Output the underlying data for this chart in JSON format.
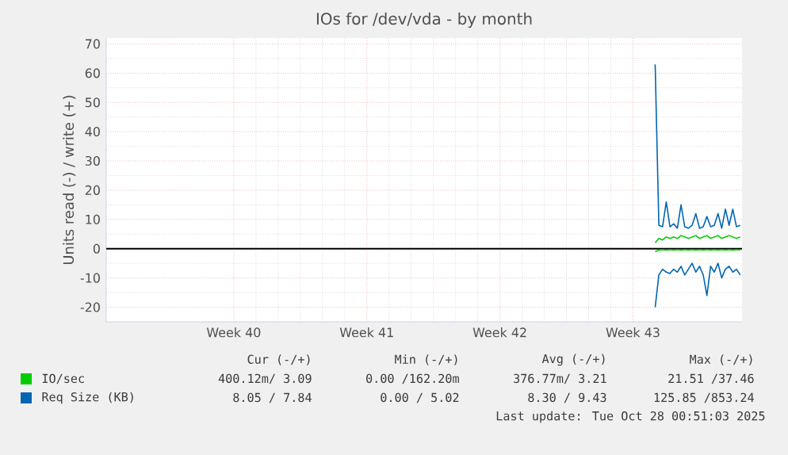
{
  "chart_data": {
    "type": "line",
    "title": "IOs for /dev/vda - by month",
    "ylabel": "Units read (-) / write (+)",
    "categories": [
      null,
      null,
      null,
      null,
      null,
      null,
      null,
      null,
      null,
      null,
      null,
      null,
      null,
      null,
      null,
      null,
      null,
      null,
      null,
      null,
      null,
      null,
      null,
      null,
      null,
      null,
      null,
      null,
      null,
      null,
      null,
      null,
      null,
      null,
      "Week 40",
      null,
      null,
      null,
      null,
      null,
      null,
      null,
      null,
      null,
      null,
      null,
      null,
      null,
      null,
      null,
      null,
      null,
      null,
      null,
      null,
      null,
      null,
      null,
      null,
      null,
      null,
      null,
      null,
      null,
      null,
      null,
      null,
      null,
      null,
      null,
      "Week 41",
      null,
      null,
      null,
      null,
      null,
      null,
      null,
      null,
      null,
      null,
      null,
      null,
      null,
      null,
      null,
      null,
      null,
      null,
      null,
      null,
      null,
      null,
      null,
      null,
      null,
      null,
      null,
      null,
      null,
      null,
      null,
      null,
      null,
      null,
      null,
      "Week 42",
      null,
      null,
      null,
      null,
      null,
      null,
      null,
      null,
      null,
      null,
      null,
      null,
      null,
      null,
      null,
      null,
      null,
      null,
      null,
      null,
      null,
      null,
      null,
      null,
      null,
      null,
      null,
      null,
      null,
      null,
      null,
      null,
      null,
      null,
      null,
      "Week 43",
      null,
      null,
      null,
      null,
      null,
      null,
      null,
      null,
      null,
      null,
      null,
      null,
      null,
      null,
      null,
      null,
      null,
      null,
      null,
      null,
      null,
      null,
      null,
      null,
      null,
      null,
      null,
      null,
      null
    ],
    "ylim": [
      -25,
      72
    ],
    "yticks": [
      -20,
      -10,
      0,
      10,
      20,
      30,
      40,
      50,
      60,
      70
    ],
    "grid": true,
    "legend": "bottom",
    "series": [
      {
        "name": "IO/sec",
        "color": "#00cc00",
        "values": [
          null,
          null,
          null,
          null,
          null,
          null,
          null,
          null,
          null,
          null,
          null,
          null,
          null,
          null,
          null,
          null,
          null,
          null,
          null,
          null,
          null,
          null,
          null,
          null,
          null,
          null,
          null,
          null,
          null,
          null,
          null,
          null,
          null,
          null,
          null,
          null,
          null,
          null,
          null,
          null,
          null,
          null,
          null,
          null,
          null,
          null,
          null,
          null,
          null,
          null,
          null,
          null,
          null,
          null,
          null,
          null,
          null,
          null,
          null,
          null,
          null,
          null,
          null,
          null,
          null,
          null,
          null,
          null,
          null,
          null,
          null,
          null,
          null,
          null,
          null,
          null,
          null,
          null,
          null,
          null,
          null,
          null,
          null,
          null,
          null,
          null,
          null,
          null,
          null,
          null,
          null,
          null,
          null,
          null,
          null,
          null,
          null,
          null,
          null,
          null,
          null,
          null,
          null,
          null,
          null,
          null,
          null,
          null,
          null,
          null,
          null,
          null,
          null,
          null,
          null,
          null,
          null,
          null,
          null,
          null,
          null,
          null,
          null,
          null,
          null,
          null,
          null,
          null,
          null,
          null,
          null,
          null,
          null,
          null,
          null,
          null,
          null,
          null,
          null,
          null,
          null,
          null,
          null,
          null,
          null,
          null,
          null,
          null,
          2,
          3.5,
          3,
          4,
          3.5,
          4,
          3.5,
          4.5,
          4,
          3.5,
          4,
          4.5,
          3.5,
          4,
          4.5,
          3.5,
          4,
          4.5,
          3.5,
          4,
          4.5,
          4,
          3.5,
          4
        ]
      },
      {
        "color": "#00cc00",
        "values": [
          null,
          null,
          null,
          null,
          null,
          null,
          null,
          null,
          null,
          null,
          null,
          null,
          null,
          null,
          null,
          null,
          null,
          null,
          null,
          null,
          null,
          null,
          null,
          null,
          null,
          null,
          null,
          null,
          null,
          null,
          null,
          null,
          null,
          null,
          null,
          null,
          null,
          null,
          null,
          null,
          null,
          null,
          null,
          null,
          null,
          null,
          null,
          null,
          null,
          null,
          null,
          null,
          null,
          null,
          null,
          null,
          null,
          null,
          null,
          null,
          null,
          null,
          null,
          null,
          null,
          null,
          null,
          null,
          null,
          null,
          null,
          null,
          null,
          null,
          null,
          null,
          null,
          null,
          null,
          null,
          null,
          null,
          null,
          null,
          null,
          null,
          null,
          null,
          null,
          null,
          null,
          null,
          null,
          null,
          null,
          null,
          null,
          null,
          null,
          null,
          null,
          null,
          null,
          null,
          null,
          null,
          null,
          null,
          null,
          null,
          null,
          null,
          null,
          null,
          null,
          null,
          null,
          null,
          null,
          null,
          null,
          null,
          null,
          null,
          null,
          null,
          null,
          null,
          null,
          null,
          null,
          null,
          null,
          null,
          null,
          null,
          null,
          null,
          null,
          null,
          null,
          null,
          null,
          null,
          null,
          null,
          null,
          null,
          -1,
          -0.5,
          -0.3,
          -0.5,
          -0.3,
          -0.5,
          -0.3,
          -0.5,
          -0.3,
          -0.5,
          -0.3,
          -0.5,
          -0.3,
          -0.5,
          -0.3,
          -0.5,
          -0.3,
          -0.5,
          -0.3,
          -0.5,
          -0.3,
          -0.5,
          -0.3,
          -0.5
        ]
      },
      {
        "name": "Req Size (KB)",
        "color": "#0066b3",
        "values": [
          null,
          null,
          null,
          null,
          null,
          null,
          null,
          null,
          null,
          null,
          null,
          null,
          null,
          null,
          null,
          null,
          null,
          null,
          null,
          null,
          null,
          null,
          null,
          null,
          null,
          null,
          null,
          null,
          null,
          null,
          null,
          null,
          null,
          null,
          null,
          null,
          null,
          null,
          null,
          null,
          null,
          null,
          null,
          null,
          null,
          null,
          null,
          null,
          null,
          null,
          null,
          null,
          null,
          null,
          null,
          null,
          null,
          null,
          null,
          null,
          null,
          null,
          null,
          null,
          null,
          null,
          null,
          null,
          null,
          null,
          null,
          null,
          null,
          null,
          null,
          null,
          null,
          null,
          null,
          null,
          null,
          null,
          null,
          null,
          null,
          null,
          null,
          null,
          null,
          null,
          null,
          null,
          null,
          null,
          null,
          null,
          null,
          null,
          null,
          null,
          null,
          null,
          null,
          null,
          null,
          null,
          null,
          null,
          null,
          null,
          null,
          null,
          null,
          null,
          null,
          null,
          null,
          null,
          null,
          null,
          null,
          null,
          null,
          null,
          null,
          null,
          null,
          null,
          null,
          null,
          null,
          null,
          null,
          null,
          null,
          null,
          null,
          null,
          null,
          null,
          null,
          null,
          null,
          null,
          null,
          null,
          null,
          null,
          63,
          8,
          7.5,
          16,
          7.5,
          8.5,
          7,
          15,
          7.5,
          7,
          8,
          12,
          7,
          7.5,
          11,
          7.5,
          8,
          12,
          7,
          13.5,
          8,
          13.5,
          7.5,
          8
        ]
      },
      {
        "color": "#0066b3",
        "values": [
          null,
          null,
          null,
          null,
          null,
          null,
          null,
          null,
          null,
          null,
          null,
          null,
          null,
          null,
          null,
          null,
          null,
          null,
          null,
          null,
          null,
          null,
          null,
          null,
          null,
          null,
          null,
          null,
          null,
          null,
          null,
          null,
          null,
          null,
          null,
          null,
          null,
          null,
          null,
          null,
          null,
          null,
          null,
          null,
          null,
          null,
          null,
          null,
          null,
          null,
          null,
          null,
          null,
          null,
          null,
          null,
          null,
          null,
          null,
          null,
          null,
          null,
          null,
          null,
          null,
          null,
          null,
          null,
          null,
          null,
          null,
          null,
          null,
          null,
          null,
          null,
          null,
          null,
          null,
          null,
          null,
          null,
          null,
          null,
          null,
          null,
          null,
          null,
          null,
          null,
          null,
          null,
          null,
          null,
          null,
          null,
          null,
          null,
          null,
          null,
          null,
          null,
          null,
          null,
          null,
          null,
          null,
          null,
          null,
          null,
          null,
          null,
          null,
          null,
          null,
          null,
          null,
          null,
          null,
          null,
          null,
          null,
          null,
          null,
          null,
          null,
          null,
          null,
          null,
          null,
          null,
          null,
          null,
          null,
          null,
          null,
          null,
          null,
          null,
          null,
          null,
          null,
          null,
          null,
          null,
          null,
          null,
          null,
          -20,
          -9,
          -7,
          -8,
          -8.5,
          -7,
          -8,
          -6,
          -9,
          -7,
          -5,
          -8,
          -6,
          -9,
          -16,
          -6,
          -8,
          -5,
          -10,
          -7,
          -6,
          -8,
          -7,
          -9
        ]
      }
    ],
    "ref_lines": [
      {
        "axis": "y",
        "value": 0,
        "color": "#000000"
      }
    ],
    "annotations": [
      "Cur (-/+)",
      "Min (-/+)",
      "Avg (-/+)",
      "Max (-/+)",
      "400.12m/ 3.09",
      "0.00 /162.20m",
      "376.77m/ 3.21",
      "21.51 /37.46",
      "8.05 / 7.84",
      "0.00 / 5.02",
      "8.30 / 9.43",
      "125.85 /853.24",
      "Last update: Tue Oct 28 00:51:03 2025"
    ]
  }
}
